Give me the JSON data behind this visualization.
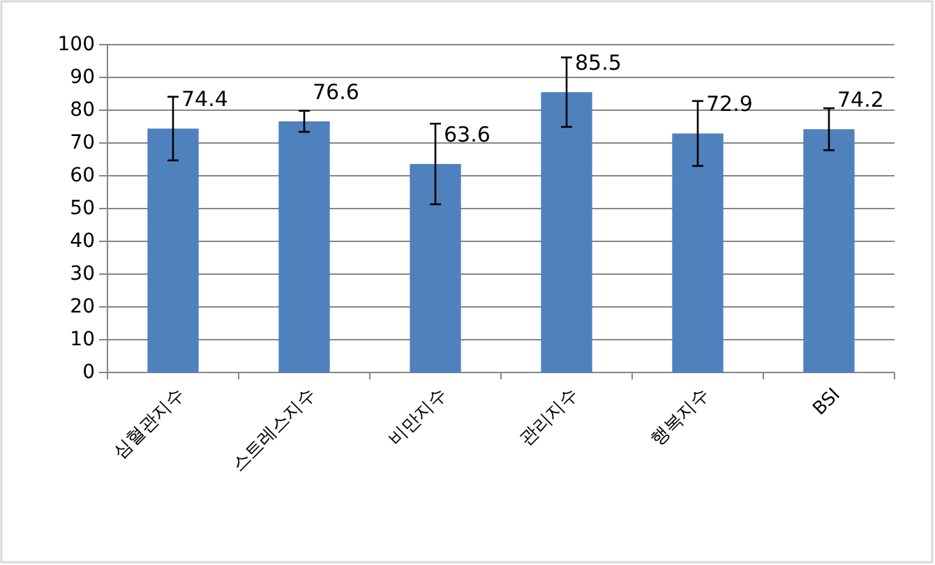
{
  "chart_data": {
    "type": "bar",
    "categories": [
      "심혈관지수",
      "스트레스지수",
      "비만지수",
      "관리지수",
      "행복지수",
      "BSI"
    ],
    "values": [
      74.4,
      76.6,
      63.6,
      85.5,
      72.9,
      74.2
    ],
    "errors": [
      9.7,
      3.2,
      12.3,
      10.6,
      9.9,
      6.4
    ],
    "color": "#4f81bd",
    "ylim": [
      0,
      100
    ],
    "yticks": [
      0,
      10,
      20,
      30,
      40,
      50,
      60,
      70,
      80,
      90,
      100
    ],
    "grid": "y",
    "data_labels": true
  }
}
